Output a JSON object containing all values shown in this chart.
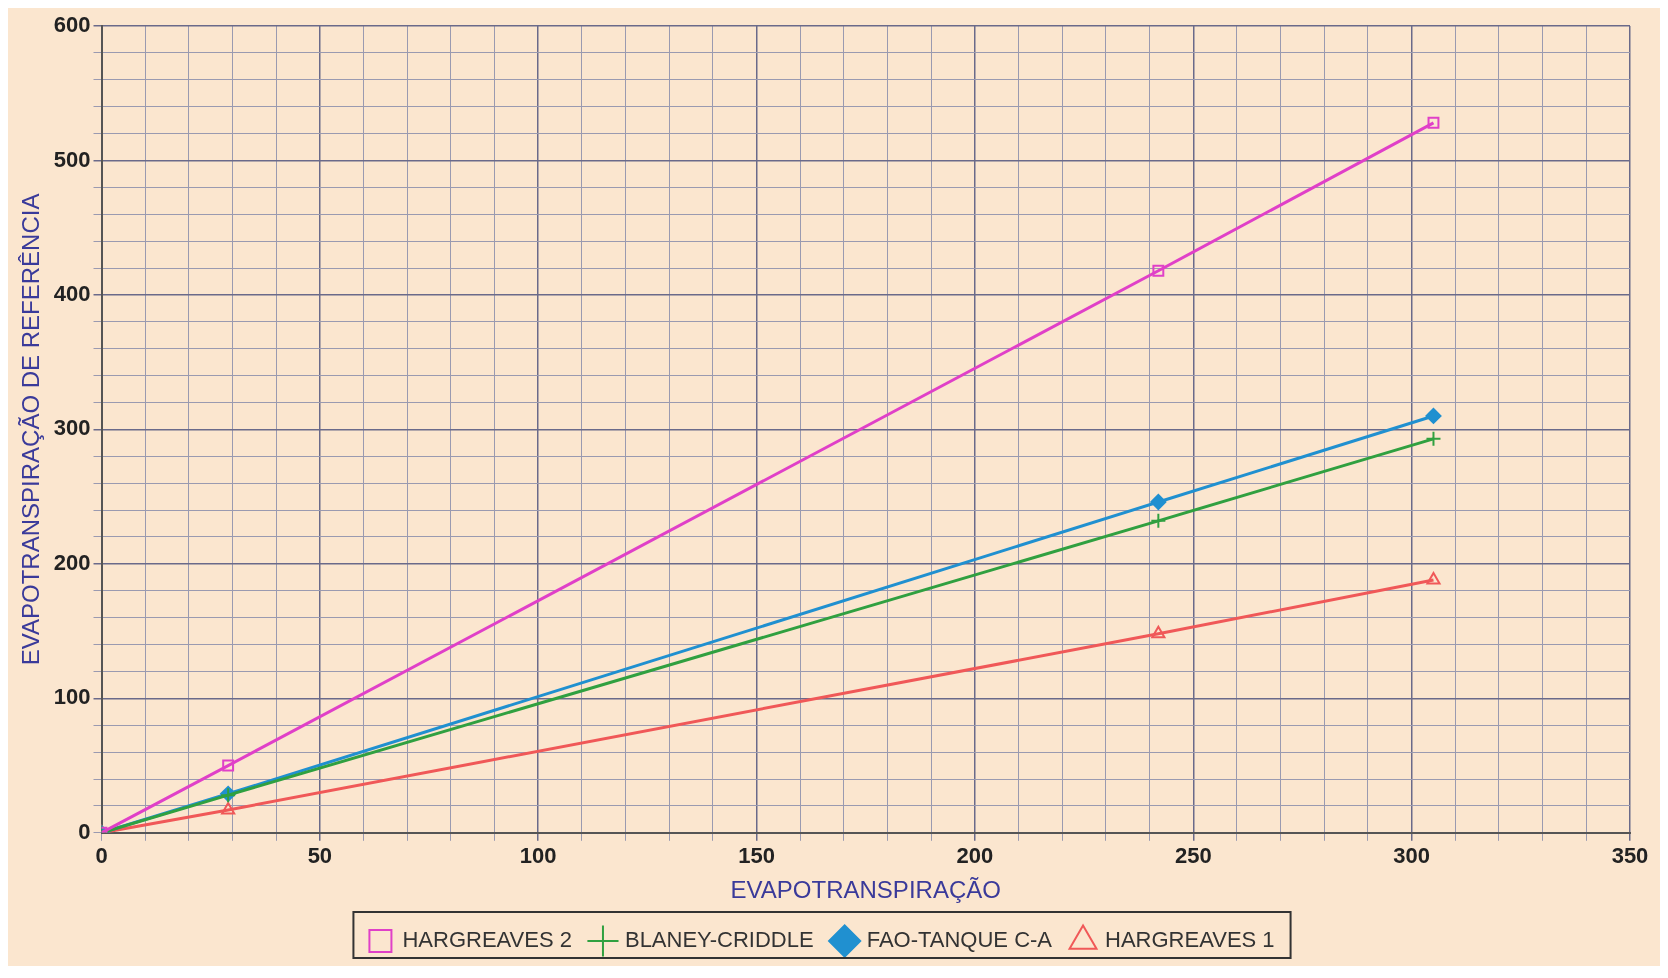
{
  "chart_data": {
    "type": "line",
    "xlabel": "EVAPOTRANSPIRAÇÃO",
    "ylabel": "EVAPOTRANSPIRAÇÃO DE REFERÊNCIA",
    "x": [
      0,
      29,
      242,
      305
    ],
    "series": [
      {
        "name": "HARGREAVES 2",
        "color": "#e040c8",
        "marker": "square",
        "values": [
          0,
          50,
          418,
          528
        ]
      },
      {
        "name": "BLANEY-CRIDDLE",
        "color": "#30a040",
        "marker": "cross",
        "values": [
          0,
          28,
          232,
          293
        ]
      },
      {
        "name": "FAO-TANQUE C-A",
        "color": "#2090d0",
        "marker": "diamond",
        "values": [
          0,
          29,
          246,
          310
        ]
      },
      {
        "name": "HARGREAVES 1",
        "color": "#f05858",
        "marker": "triangle",
        "values": [
          0,
          17,
          148,
          188
        ]
      }
    ],
    "xlim": [
      0,
      350
    ],
    "ylim": [
      0,
      600
    ],
    "xticks": [
      0,
      {
        "value": 10,
        "label": null
      },
      {
        "value": 20,
        "label": null
      },
      {
        "value": 30,
        "label": null
      },
      {
        "value": 40,
        "label": null
      },
      50,
      {
        "value": 60,
        "label": null
      },
      {
        "value": 70,
        "label": null
      },
      {
        "value": 80,
        "label": null
      },
      {
        "value": 90,
        "label": null
      },
      100,
      {
        "value": 110,
        "label": null
      },
      {
        "value": 120,
        "label": null
      },
      {
        "value": 130,
        "label": null
      },
      {
        "value": 140,
        "label": null
      },
      150,
      {
        "value": 160,
        "label": null
      },
      {
        "value": 170,
        "label": null
      },
      {
        "value": 180,
        "label": null
      },
      {
        "value": 190,
        "label": null
      },
      200,
      {
        "value": 210,
        "label": null
      },
      {
        "value": 220,
        "label": null
      },
      {
        "value": 230,
        "label": null
      },
      {
        "value": 240,
        "label": null
      },
      250,
      {
        "value": 260,
        "label": null
      },
      {
        "value": 270,
        "label": null
      },
      {
        "value": 280,
        "label": null
      },
      {
        "value": 290,
        "label": null
      },
      300,
      {
        "value": 310,
        "label": null
      },
      {
        "value": 320,
        "label": null
      },
      {
        "value": 330,
        "label": null
      },
      {
        "value": 340,
        "label": null
      },
      350
    ],
    "yticks": [
      0,
      {
        "value": 20,
        "label": null
      },
      {
        "value": 40,
        "label": null
      },
      {
        "value": 60,
        "label": null
      },
      {
        "value": 80,
        "label": null
      },
      100,
      {
        "value": 120,
        "label": null
      },
      {
        "value": 140,
        "label": null
      },
      {
        "value": 160,
        "label": null
      },
      {
        "value": 180,
        "label": null
      },
      200,
      {
        "value": 220,
        "label": null
      },
      {
        "value": 240,
        "label": null
      },
      {
        "value": 260,
        "label": null
      },
      {
        "value": 280,
        "label": null
      },
      300,
      {
        "value": 320,
        "label": null
      },
      {
        "value": 340,
        "label": null
      },
      {
        "value": 360,
        "label": null
      },
      {
        "value": 380,
        "label": null
      },
      400,
      {
        "value": 420,
        "label": null
      },
      {
        "value": 440,
        "label": null
      },
      {
        "value": 460,
        "label": null
      },
      {
        "value": 480,
        "label": null
      },
      500,
      {
        "value": 520,
        "label": null
      },
      {
        "value": 540,
        "label": null
      },
      {
        "value": 560,
        "label": null
      },
      {
        "value": 580,
        "label": null
      },
      600
    ],
    "grid": true,
    "legend": "bottom"
  }
}
